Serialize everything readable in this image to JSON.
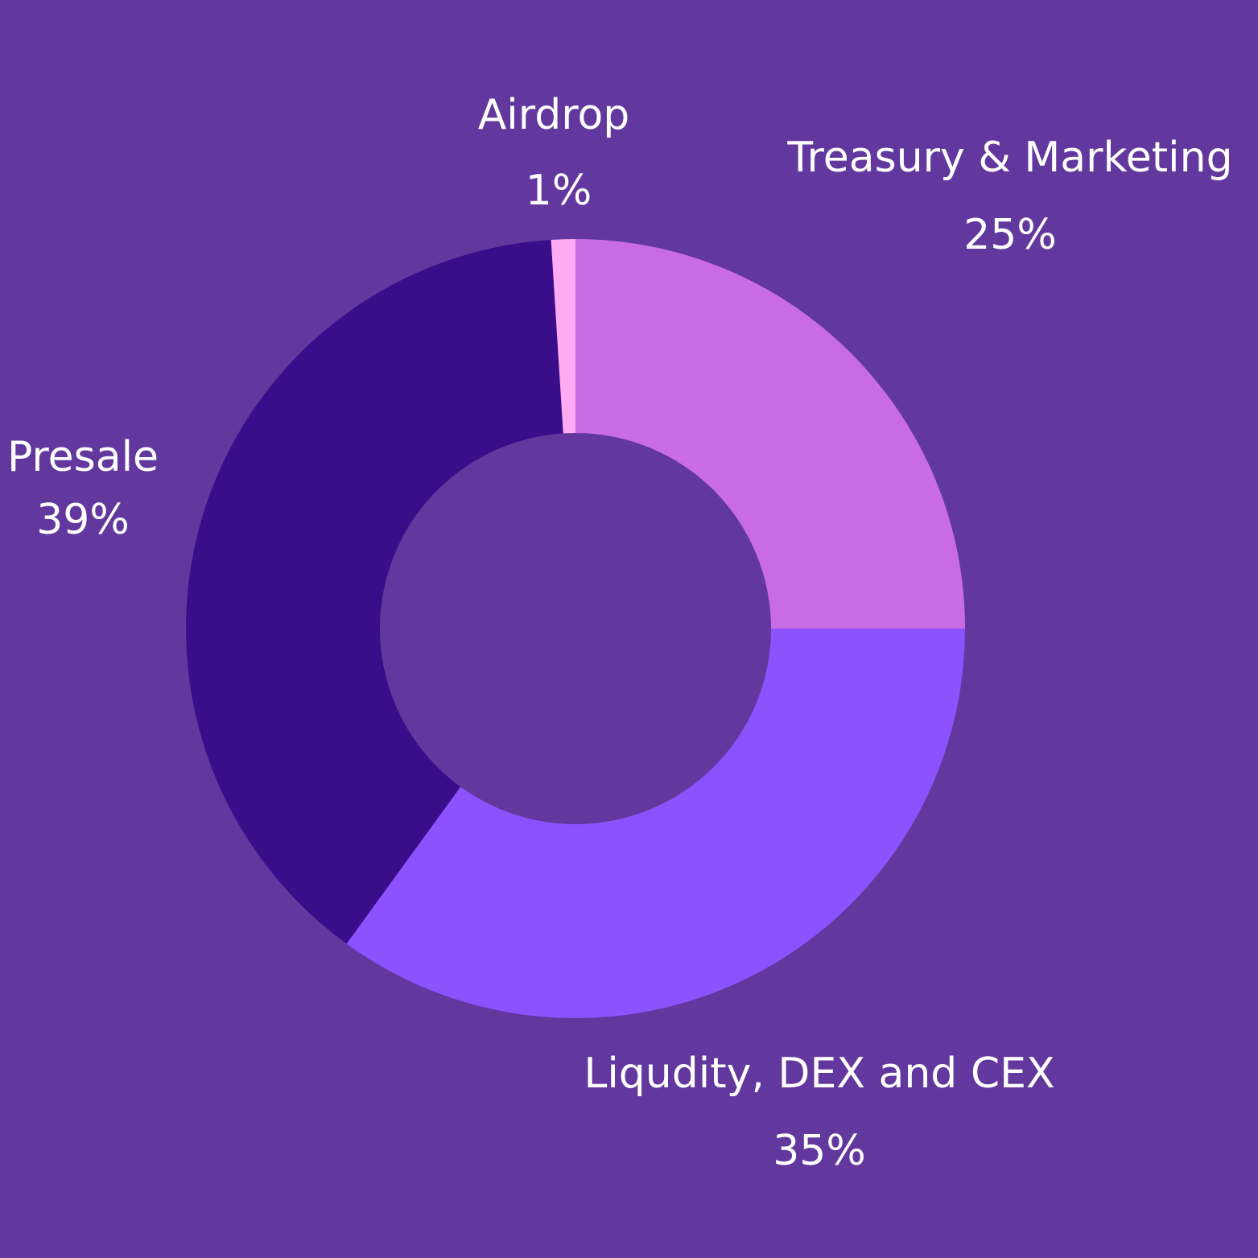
{
  "chart_data": {
    "type": "pie",
    "donut": true,
    "background": "#62389e",
    "label_color": "#ffffff",
    "slices": [
      {
        "name": "Treasury & Marketing",
        "value": 25,
        "percent_label": "25%",
        "color": "#c96ce4"
      },
      {
        "name": "Liqudity, DEX and CEX",
        "value": 35,
        "percent_label": "35%",
        "color": "#8b52fd"
      },
      {
        "name": "Presale",
        "value": 39,
        "percent_label": "39%",
        "color": "#3a0d8a"
      },
      {
        "name": "Airdrop",
        "value": 1,
        "percent_label": "1%",
        "color": "#ffaaf2"
      }
    ]
  }
}
